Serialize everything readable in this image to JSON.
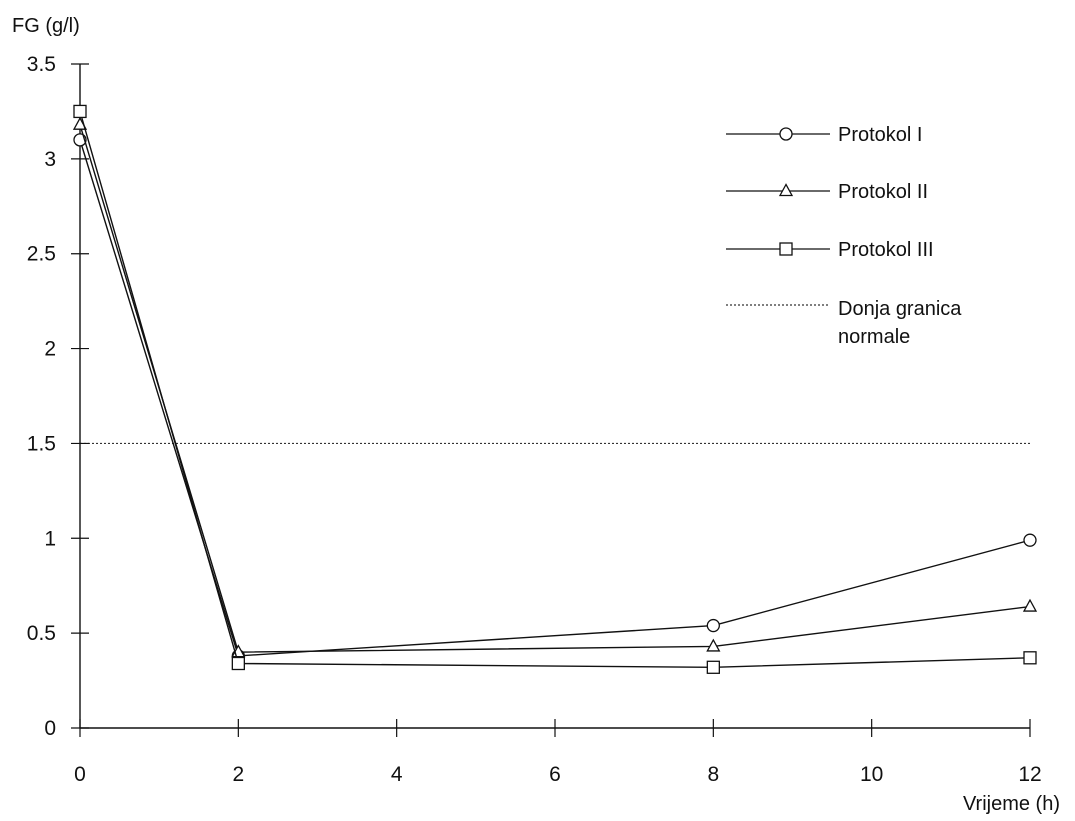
{
  "chart_data": {
    "type": "line",
    "title": "",
    "ylabel": "FG (g/l)",
    "xlabel": "Vrijeme (h)",
    "xlim": [
      0,
      12
    ],
    "ylim": [
      0,
      3.5
    ],
    "x_ticks": [
      "0",
      "2",
      "4",
      "6",
      "8",
      "10",
      "12"
    ],
    "y_ticks": [
      "0",
      "0.5",
      "1",
      "1.5",
      "2",
      "2.5",
      "3",
      "3.5"
    ],
    "x_tick_values": [
      0,
      2,
      4,
      6,
      8,
      10,
      12
    ],
    "y_tick_values": [
      0,
      0.5,
      1,
      1.5,
      2,
      2.5,
      3,
      3.5
    ],
    "grid": false,
    "legend_position": "top-right",
    "series": [
      {
        "name": "Protokol I",
        "marker": "circle",
        "x": [
          0,
          2,
          8,
          12
        ],
        "y": [
          3.1,
          0.38,
          0.54,
          0.99
        ]
      },
      {
        "name": "Protokol II",
        "marker": "triangle",
        "x": [
          0,
          2,
          8,
          12
        ],
        "y": [
          3.18,
          0.4,
          0.43,
          0.64
        ]
      },
      {
        "name": "Protokol III",
        "marker": "square",
        "x": [
          0,
          2,
          8,
          12
        ],
        "y": [
          3.25,
          0.34,
          0.32,
          0.37
        ]
      }
    ],
    "reference_lines": [
      {
        "name_lines": [
          "Donja granica",
          "normale"
        ],
        "y": 1.5,
        "style": "dotted"
      }
    ]
  }
}
